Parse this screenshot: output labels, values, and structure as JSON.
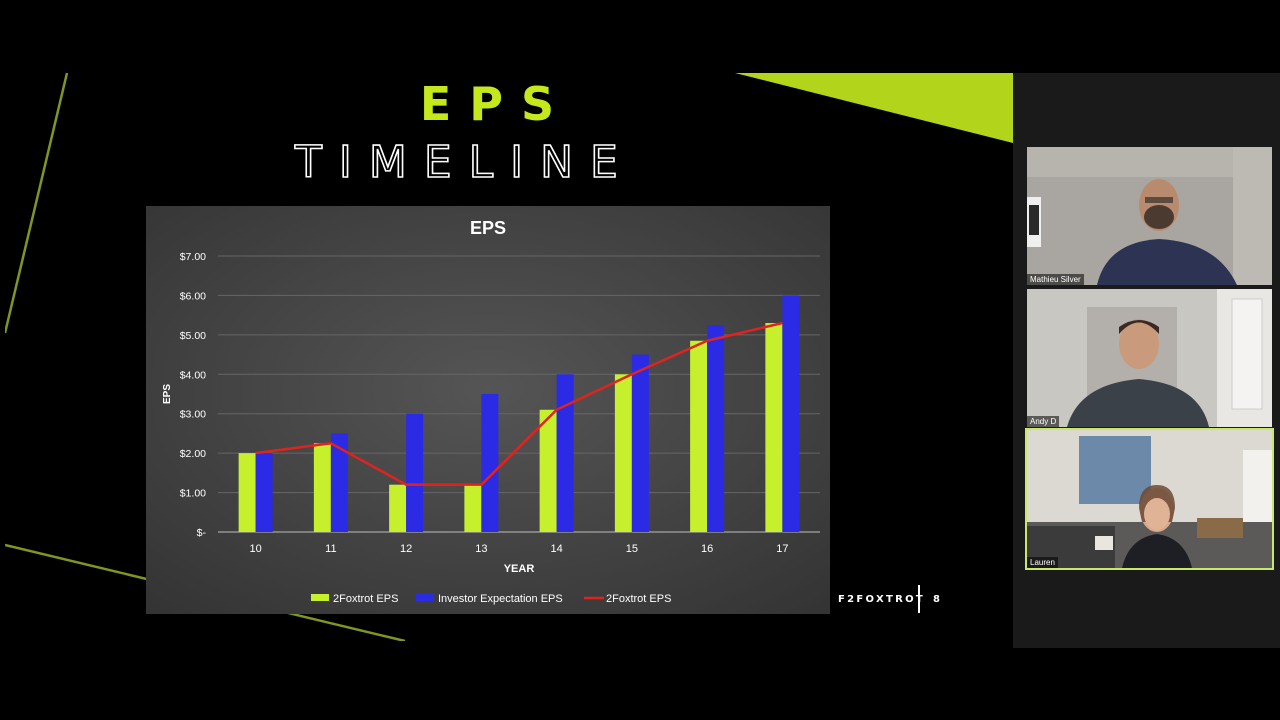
{
  "slide": {
    "title_line1": "EPS",
    "title_line2": "TIMELINE",
    "brand": "F2FOXTROT",
    "page_number": "8"
  },
  "colors": {
    "accent": "#c5e81c",
    "bar_eps": "#c6ef2c",
    "bar_expect": "#2b2be6",
    "line_eps": "#e0231d",
    "chart_bg": "#4a4a4a"
  },
  "chart_data": {
    "type": "bar",
    "title": "EPS",
    "xlabel": "YEAR",
    "ylabel": "EPS",
    "categories": [
      "10",
      "11",
      "12",
      "13",
      "14",
      "15",
      "16",
      "17"
    ],
    "yticks": [
      "$-",
      "$1.00",
      "$2.00",
      "$3.00",
      "$4.00",
      "$5.00",
      "$6.00",
      "$7.00"
    ],
    "ylim": [
      0,
      7
    ],
    "grid": true,
    "legend": "bottom",
    "series": [
      {
        "name": "2Foxtrot EPS",
        "kind": "bar",
        "values": [
          2.0,
          2.25,
          1.2,
          1.2,
          3.1,
          4.0,
          4.85,
          5.3
        ]
      },
      {
        "name": "Investor Expectation EPS",
        "kind": "bar",
        "values": [
          2.0,
          2.5,
          3.0,
          3.5,
          4.0,
          4.5,
          5.25,
          6.0
        ]
      },
      {
        "name": "2Foxtrot EPS",
        "kind": "line",
        "values": [
          2.0,
          2.25,
          1.2,
          1.2,
          3.1,
          4.0,
          4.85,
          5.3
        ]
      }
    ]
  },
  "participants": [
    {
      "name": "Mathieu Silver",
      "icon": "person-video-icon",
      "active": false
    },
    {
      "name": "Andy D",
      "icon": "person-video-icon",
      "active": false
    },
    {
      "name": "Lauren",
      "icon": "person-video-icon",
      "active": true
    }
  ]
}
